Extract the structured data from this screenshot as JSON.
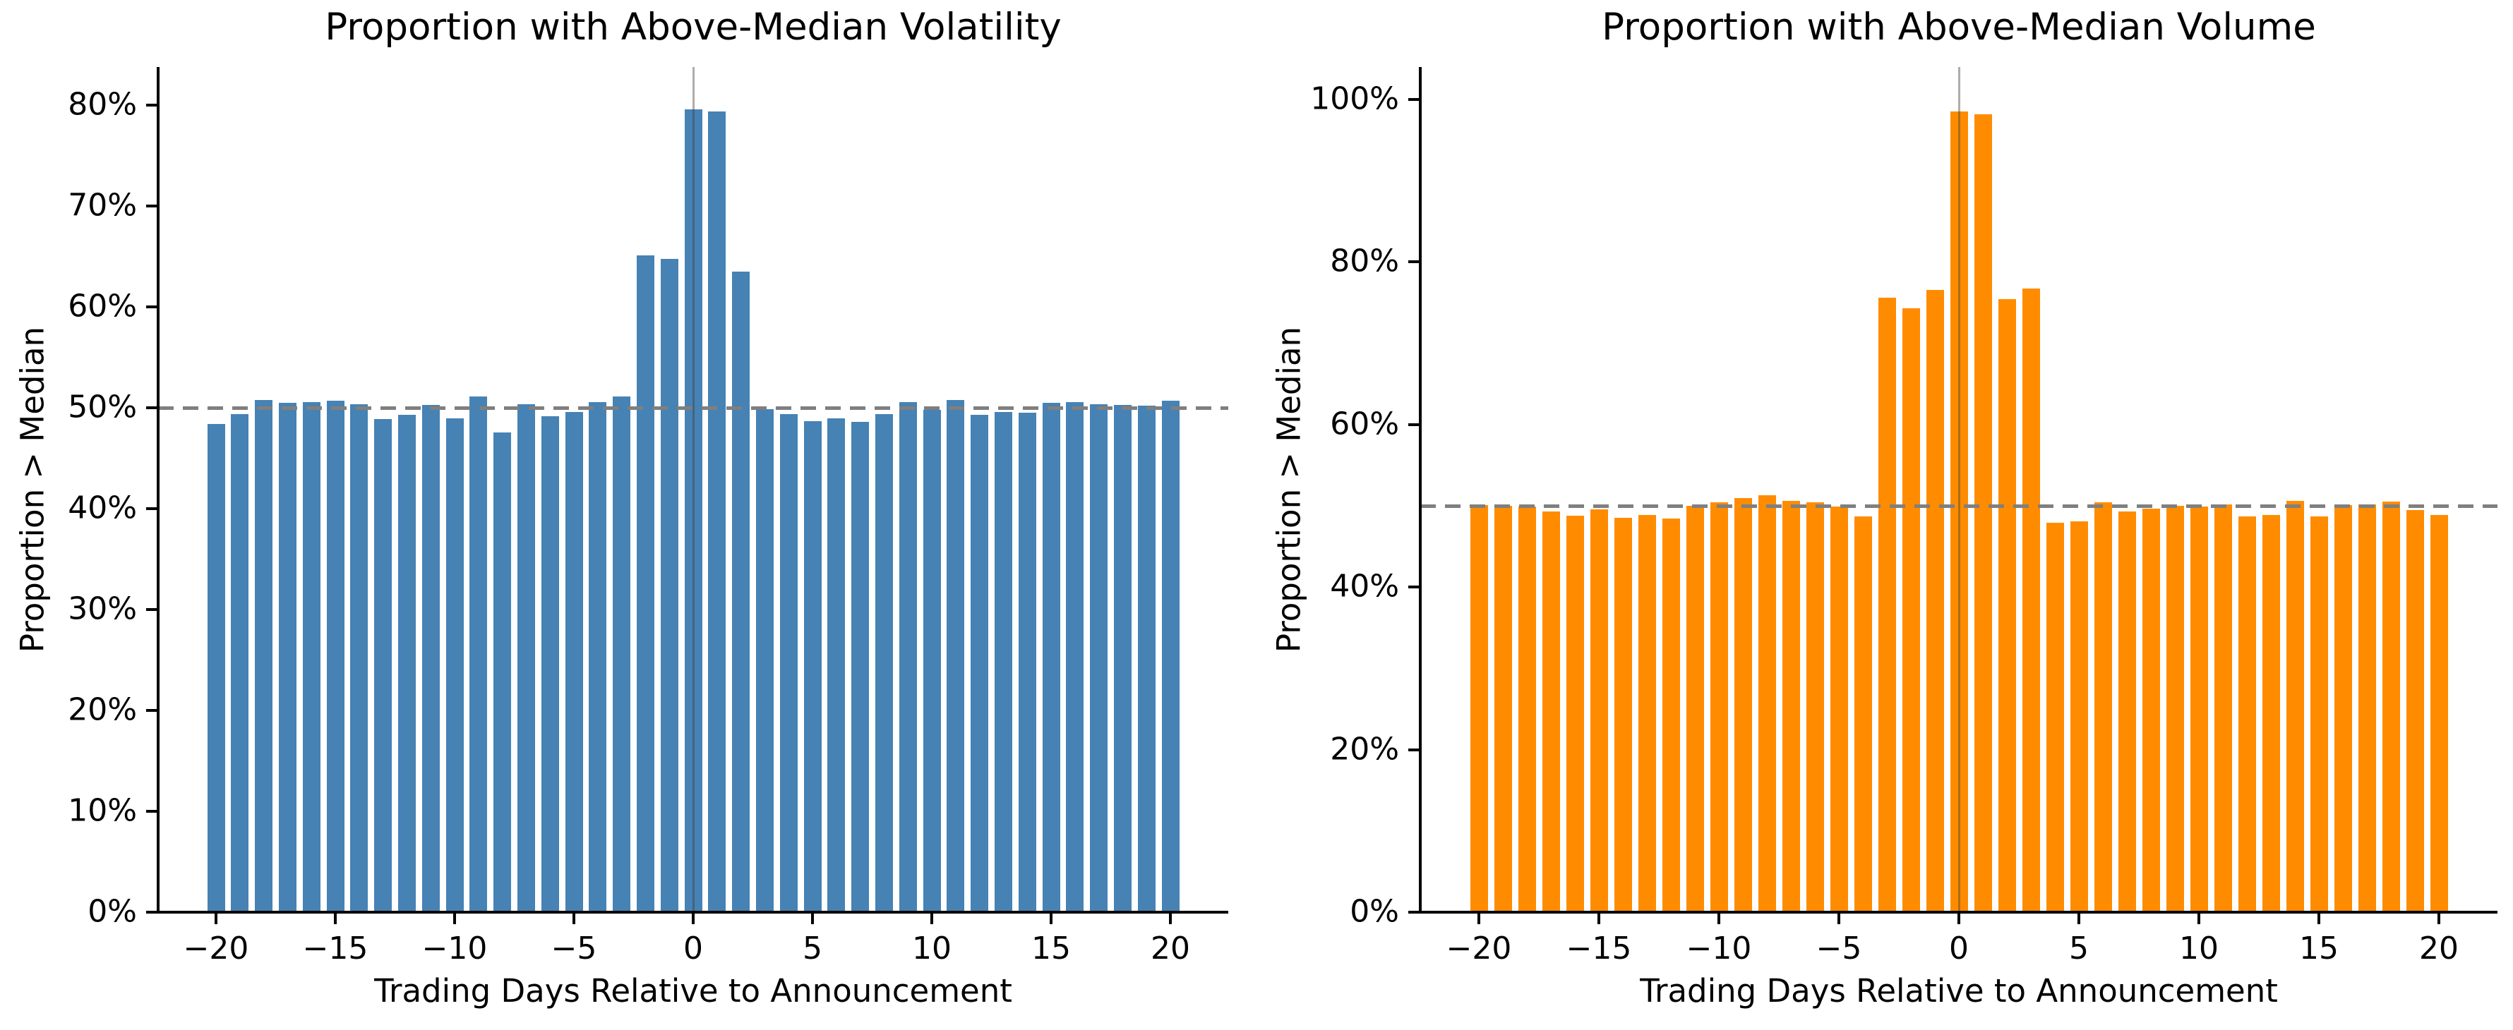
{
  "figure": {
    "background": "#ffffff"
  },
  "chart_data": [
    {
      "type": "bar",
      "title": "Proportion with Above-Median Volatility",
      "xlabel": "Trading Days Relative to Announcement",
      "ylabel": "Proportion > Median",
      "bar_color": "#4682b4",
      "ref_line": {
        "value": 50,
        "color": "#7f7f7f",
        "style": "dashed"
      },
      "event_line": {
        "x": 0,
        "color": "rgba(60,60,60,0.42)"
      },
      "ylim": [
        0,
        83.8
      ],
      "grid": false,
      "yticks": [
        0,
        10,
        20,
        30,
        40,
        50,
        60,
        70,
        80
      ],
      "ytick_labels": [
        "0%",
        "10%",
        "20%",
        "30%",
        "40%",
        "50%",
        "60%",
        "70%",
        "80%"
      ],
      "xticks": [
        -20,
        -15,
        -10,
        -5,
        0,
        5,
        10,
        15,
        20
      ],
      "xtick_labels": [
        "−20",
        "−15",
        "−10",
        "−5",
        "0",
        "5",
        "10",
        "15",
        "20"
      ],
      "x": [
        -20,
        -19,
        -18,
        -17,
        -16,
        -15,
        -14,
        -13,
        -12,
        -11,
        -10,
        -9,
        -8,
        -7,
        -6,
        -5,
        -4,
        -3,
        -2,
        -1,
        0,
        1,
        2,
        3,
        4,
        5,
        6,
        7,
        8,
        9,
        10,
        11,
        12,
        13,
        14,
        15,
        16,
        17,
        18,
        19,
        20
      ],
      "values": [
        48.4,
        49.4,
        50.8,
        50.5,
        50.6,
        50.7,
        50.4,
        48.9,
        49.3,
        50.3,
        49.0,
        51.1,
        47.6,
        50.4,
        49.2,
        49.6,
        50.6,
        51.1,
        65.1,
        64.8,
        79.6,
        79.4,
        63.5,
        49.9,
        49.4,
        48.7,
        49.0,
        48.6,
        49.4,
        50.6,
        49.8,
        50.8,
        49.3,
        49.6,
        49.5,
        50.5,
        50.6,
        50.4,
        50.3,
        50.2,
        50.7
      ]
    },
    {
      "type": "bar",
      "title": "Proportion with Above-Median Volume",
      "xlabel": "Trading Days Relative to Announcement",
      "ylabel": "Proportion > Median",
      "bar_color": "#ff8c00",
      "ref_line": {
        "value": 50,
        "color": "#7f7f7f",
        "style": "dashed"
      },
      "event_line": {
        "x": 0,
        "color": "rgba(60,60,60,0.42)"
      },
      "ylim": [
        0,
        104
      ],
      "grid": false,
      "yticks": [
        0,
        20,
        40,
        60,
        80,
        100
      ],
      "ytick_labels": [
        "0%",
        "20%",
        "40%",
        "60%",
        "80%",
        "100%"
      ],
      "xticks": [
        -20,
        -15,
        -10,
        -5,
        0,
        5,
        10,
        15,
        20
      ],
      "xtick_labels": [
        "−20",
        "−15",
        "−10",
        "−5",
        "0",
        "5",
        "10",
        "15",
        "20"
      ],
      "x": [
        -20,
        -19,
        -18,
        -17,
        -16,
        -15,
        -14,
        -13,
        -12,
        -11,
        -10,
        -9,
        -8,
        -7,
        -6,
        -5,
        -4,
        -3,
        -2,
        -1,
        0,
        1,
        2,
        3,
        4,
        5,
        6,
        7,
        8,
        9,
        10,
        11,
        12,
        13,
        14,
        15,
        16,
        17,
        18,
        19,
        20
      ],
      "values": [
        50.1,
        50.0,
        49.9,
        49.3,
        48.8,
        49.6,
        48.5,
        48.9,
        48.4,
        50.0,
        50.4,
        51.0,
        51.3,
        50.6,
        50.4,
        49.9,
        48.7,
        75.6,
        74.3,
        76.6,
        98.5,
        98.2,
        75.4,
        76.7,
        47.9,
        48.1,
        50.4,
        49.3,
        49.7,
        50.0,
        49.9,
        50.2,
        48.7,
        48.9,
        50.6,
        48.7,
        50.1,
        50.2,
        50.5,
        49.5,
        48.9
      ]
    }
  ]
}
